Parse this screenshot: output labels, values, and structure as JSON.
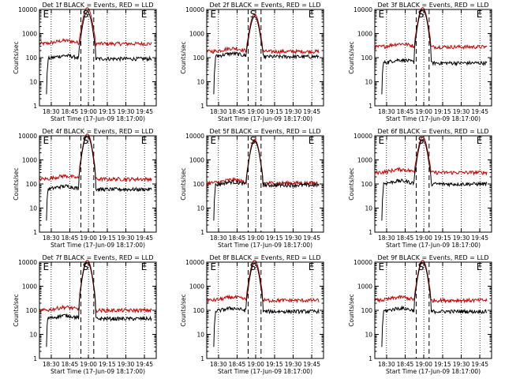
{
  "chart_data": [
    {
      "type": "line",
      "title": "Det 1f BLACK = Events, RED = LLD",
      "xlabel": "Start Time (17-Jun-09 18:17:00)",
      "ylabel": "Counts/sec",
      "x_ticks": [
        "18:30",
        "18:45",
        "19:00",
        "19:15",
        "19:30",
        "19:45"
      ],
      "y_ticks": [
        "1",
        "10",
        "100",
        "1000",
        "10000"
      ],
      "y_scale": "log",
      "ylim": [
        1,
        10000
      ],
      "markers": [
        "E",
        "S",
        "E"
      ],
      "series": [
        {
          "color": "#cc0000",
          "baseline": 380,
          "peak": 12000
        },
        {
          "color": "#000000",
          "baseline": 90,
          "peak": 8000
        }
      ]
    },
    {
      "type": "line",
      "title": "Det 2f BLACK = Events, RED = LLD",
      "xlabel": "Start Time (17-Jun-09 18:17:00)",
      "ylabel": "Counts/sec",
      "x_ticks": [
        "18:30",
        "18:45",
        "19:00",
        "19:15",
        "19:30",
        "19:45"
      ],
      "y_ticks": [
        "1",
        "10",
        "100",
        "1000",
        "10000"
      ],
      "y_scale": "log",
      "ylim": [
        1,
        10000
      ],
      "markers": [
        "E",
        "S",
        "E"
      ],
      "series": [
        {
          "color": "#cc0000",
          "baseline": 180,
          "peak": 6500
        },
        {
          "color": "#000000",
          "baseline": 110,
          "peak": 5000
        }
      ]
    },
    {
      "type": "line",
      "title": "Det 3f BLACK = Events, RED = LLD",
      "xlabel": "Start Time (17-Jun-09 18:17:00)",
      "ylabel": "Counts/sec",
      "x_ticks": [
        "18:30",
        "18:45",
        "19:00",
        "19:15",
        "19:30",
        "19:45"
      ],
      "y_ticks": [
        "1",
        "10",
        "100",
        "1000",
        "10000"
      ],
      "y_scale": "log",
      "ylim": [
        1,
        10000
      ],
      "markers": [
        "E",
        "S",
        "E"
      ],
      "series": [
        {
          "color": "#cc0000",
          "baseline": 280,
          "peak": 12000
        },
        {
          "color": "#000000",
          "baseline": 60,
          "peak": 10000
        }
      ]
    },
    {
      "type": "line",
      "title": "Det 4f BLACK = Events, RED = LLD",
      "xlabel": "Start Time (17-Jun-09 18:17:00)",
      "ylabel": "Counts/sec",
      "x_ticks": [
        "18:30",
        "18:45",
        "19:00",
        "19:15",
        "19:30",
        "19:45"
      ],
      "y_ticks": [
        "1",
        "10",
        "100",
        "1000",
        "10000"
      ],
      "y_scale": "log",
      "ylim": [
        1,
        10000
      ],
      "markers": [
        "E",
        "S",
        "E"
      ],
      "series": [
        {
          "color": "#cc0000",
          "baseline": 160,
          "peak": 12000
        },
        {
          "color": "#000000",
          "baseline": 60,
          "peak": 10000
        }
      ]
    },
    {
      "type": "line",
      "title": "Det 5f BLACK = Events, RED = LLD",
      "xlabel": "Start Time (17-Jun-09 18:17:00)",
      "ylabel": "Counts/sec",
      "x_ticks": [
        "18:30",
        "18:45",
        "19:00",
        "19:15",
        "19:30",
        "19:45"
      ],
      "y_scale": "log",
      "y_ticks": [
        "1",
        "10",
        "100",
        "1000",
        "10000"
      ],
      "ylim": [
        1,
        10000
      ],
      "markers": [
        "E",
        "S",
        "E"
      ],
      "series": [
        {
          "color": "#cc0000",
          "baseline": 110,
          "peak": 7000
        },
        {
          "color": "#000000",
          "baseline": 90,
          "peak": 6000
        }
      ]
    },
    {
      "type": "line",
      "title": "Det 6f BLACK = Events, RED = LLD",
      "xlabel": "Start Time (17-Jun-09 18:17:00)",
      "ylabel": "Counts/sec",
      "x_ticks": [
        "18:30",
        "18:45",
        "19:00",
        "19:15",
        "19:30",
        "19:45"
      ],
      "y_ticks": [
        "1",
        "10",
        "100",
        "1000",
        "10000"
      ],
      "y_scale": "log",
      "ylim": [
        1,
        10000
      ],
      "markers": [
        "E",
        "S",
        "E"
      ],
      "series": [
        {
          "color": "#cc0000",
          "baseline": 300,
          "peak": 9000
        },
        {
          "color": "#000000",
          "baseline": 100,
          "peak": 7000
        }
      ]
    },
    {
      "type": "line",
      "title": "Det 7f BLACK = Events, RED = LLD",
      "xlabel": "Start Time (17-Jun-09 18:17:00)",
      "ylabel": "Counts/sec",
      "x_ticks": [
        "18:30",
        "18:45",
        "19:00",
        "19:15",
        "19:30",
        "19:45"
      ],
      "y_ticks": [
        "1",
        "10",
        "100",
        "1000",
        "10000"
      ],
      "y_scale": "log",
      "ylim": [
        1,
        10000
      ],
      "markers": [
        "E",
        "S",
        "E"
      ],
      "series": [
        {
          "color": "#cc0000",
          "baseline": 100,
          "peak": 12000
        },
        {
          "color": "#000000",
          "baseline": 45,
          "peak": 10000
        }
      ]
    },
    {
      "type": "line",
      "title": "Det 8f BLACK = Events, RED = LLD",
      "xlabel": "Start Time (17-Jun-09 18:17:00)",
      "ylabel": "Counts/sec",
      "x_ticks": [
        "18:30",
        "18:45",
        "19:00",
        "19:15",
        "19:30",
        "19:45"
      ],
      "y_ticks": [
        "1",
        "10",
        "100",
        "1000",
        "10000"
      ],
      "y_scale": "log",
      "ylim": [
        1,
        10000
      ],
      "markers": [
        "E",
        "S",
        "E"
      ],
      "series": [
        {
          "color": "#cc0000",
          "baseline": 260,
          "peak": 12000
        },
        {
          "color": "#000000",
          "baseline": 90,
          "peak": 9000
        }
      ]
    },
    {
      "type": "line",
      "title": "Det 9f BLACK = Events, RED = LLD",
      "xlabel": "Start Time (17-Jun-09 18:17:00)",
      "ylabel": "Counts/sec",
      "x_ticks": [
        "18:30",
        "18:45",
        "19:00",
        "19:15",
        "19:30",
        "19:45"
      ],
      "y_ticks": [
        "1",
        "10",
        "100",
        "1000",
        "10000"
      ],
      "y_scale": "log",
      "ylim": [
        1,
        10000
      ],
      "markers": [
        "E",
        "S",
        "E"
      ],
      "series": [
        {
          "color": "#cc0000",
          "baseline": 260,
          "peak": 12000
        },
        {
          "color": "#000000",
          "baseline": 90,
          "peak": 10000
        }
      ]
    }
  ]
}
